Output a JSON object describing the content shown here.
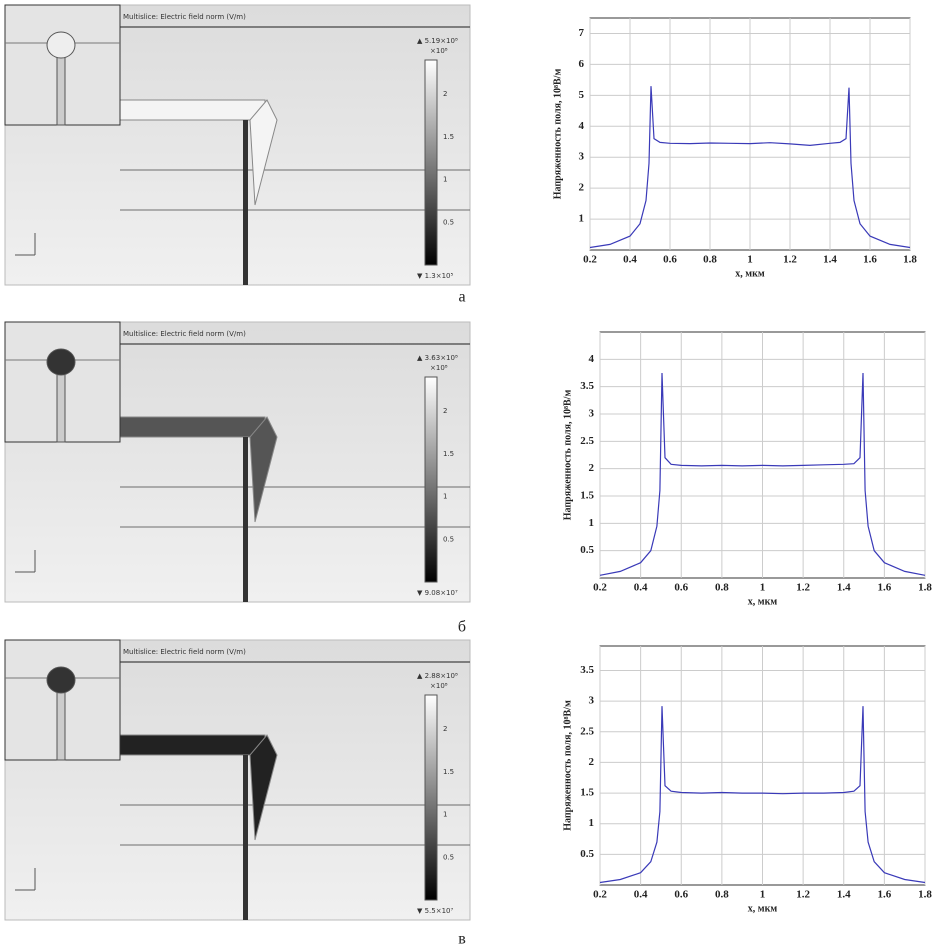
{
  "simulations": [
    {
      "title": "Multislice: Electric field norm (V/m)",
      "max_label": "▲ 5.19×10⁸",
      "unit_label": "×10⁸",
      "colorbar_ticks": [
        2,
        1.5,
        1,
        0.5
      ],
      "min_label": "▼ 1.3×10⁵",
      "panel_label": "а"
    },
    {
      "title": "Multislice: Electric field norm (V/m)",
      "max_label": "▲ 3.63×10⁸",
      "unit_label": "×10⁸",
      "colorbar_ticks": [
        2,
        1.5,
        1,
        0.5
      ],
      "min_label": "▼ 9.08×10⁷",
      "panel_label": "б"
    },
    {
      "title": "Multislice: Electric field norm (V/m)",
      "max_label": "▲ 2.88×10⁸",
      "unit_label": "×10⁸",
      "colorbar_ticks": [
        2,
        1.5,
        1,
        0.5
      ],
      "min_label": "▼ 5.5×10⁷",
      "panel_label": "в"
    }
  ],
  "chart_data": [
    {
      "type": "line",
      "x_label": "x, мкм",
      "y_label": "Напряженность поля, 10⁸В/м",
      "grid": true,
      "color": "#3a3ab8",
      "xlim": [
        0.2,
        1.8
      ],
      "xticks": [
        0.2,
        0.4,
        0.6,
        0.8,
        1,
        1.2,
        1.4,
        1.6,
        1.8
      ],
      "ylim": [
        0,
        7.5
      ],
      "yticks": [
        1,
        2,
        3,
        4,
        5,
        6,
        7
      ],
      "x": [
        0.2,
        0.3,
        0.4,
        0.45,
        0.48,
        0.495,
        0.505,
        0.52,
        0.55,
        0.6,
        0.7,
        0.8,
        0.9,
        1.0,
        1.1,
        1.2,
        1.3,
        1.4,
        1.45,
        1.48,
        1.495,
        1.505,
        1.52,
        1.55,
        1.6,
        1.7,
        1.8
      ],
      "values": [
        0.08,
        0.18,
        0.45,
        0.85,
        1.6,
        2.8,
        5.3,
        3.6,
        3.48,
        3.45,
        3.44,
        3.46,
        3.45,
        3.44,
        3.47,
        3.43,
        3.38,
        3.45,
        3.48,
        3.6,
        5.25,
        2.8,
        1.6,
        0.85,
        0.45,
        0.18,
        0.08
      ]
    },
    {
      "type": "line",
      "x_label": "x, мкм",
      "y_label": "Напряженность поля, 10⁸В/м",
      "grid": true,
      "color": "#3a3ab8",
      "xlim": [
        0.2,
        1.8
      ],
      "xticks": [
        0.2,
        0.4,
        0.6,
        0.8,
        1,
        1.2,
        1.4,
        1.6,
        1.8
      ],
      "ylim": [
        0,
        4.5
      ],
      "yticks": [
        0.5,
        1,
        1.5,
        2,
        2.5,
        3,
        3.5,
        4
      ],
      "x": [
        0.2,
        0.3,
        0.4,
        0.45,
        0.48,
        0.495,
        0.505,
        0.52,
        0.55,
        0.6,
        0.7,
        0.8,
        0.9,
        1.0,
        1.1,
        1.2,
        1.3,
        1.4,
        1.45,
        1.48,
        1.495,
        1.505,
        1.52,
        1.55,
        1.6,
        1.7,
        1.8
      ],
      "values": [
        0.05,
        0.12,
        0.28,
        0.5,
        0.95,
        1.6,
        3.75,
        2.2,
        2.08,
        2.06,
        2.05,
        2.06,
        2.05,
        2.06,
        2.05,
        2.06,
        2.07,
        2.08,
        2.09,
        2.2,
        3.75,
        1.6,
        0.95,
        0.5,
        0.28,
        0.12,
        0.05
      ]
    },
    {
      "type": "line",
      "x_label": "x, мкм",
      "y_label": "Напряженность поля, 10⁸В/м",
      "grid": true,
      "color": "#3a3ab8",
      "xlim": [
        0.2,
        1.8
      ],
      "xticks": [
        0.2,
        0.4,
        0.6,
        0.8,
        1,
        1.2,
        1.4,
        1.6,
        1.8
      ],
      "ylim": [
        0,
        3.9
      ],
      "yticks": [
        0.5,
        1,
        1.5,
        2,
        2.5,
        3,
        3.5
      ],
      "x": [
        0.2,
        0.3,
        0.4,
        0.45,
        0.48,
        0.495,
        0.505,
        0.52,
        0.55,
        0.6,
        0.7,
        0.8,
        0.9,
        1.0,
        1.1,
        1.2,
        1.3,
        1.4,
        1.45,
        1.48,
        1.495,
        1.505,
        1.52,
        1.55,
        1.6,
        1.7,
        1.8
      ],
      "values": [
        0.04,
        0.09,
        0.2,
        0.38,
        0.7,
        1.2,
        2.92,
        1.62,
        1.53,
        1.51,
        1.5,
        1.51,
        1.5,
        1.5,
        1.49,
        1.5,
        1.5,
        1.51,
        1.53,
        1.62,
        2.92,
        1.2,
        0.7,
        0.38,
        0.2,
        0.09,
        0.04
      ]
    }
  ]
}
